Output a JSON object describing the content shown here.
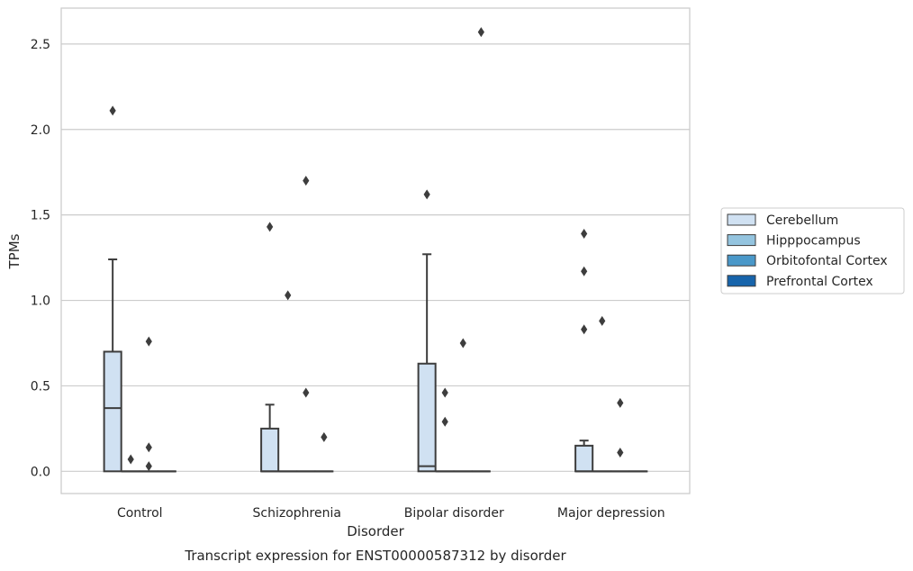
{
  "chart_data": {
    "type": "box",
    "caption": "Transcript expression for ENST00000587312 by disorder",
    "xlabel": "Disorder",
    "ylabel": "TPMs",
    "ylim": [
      -0.13,
      2.71
    ],
    "yticks": [
      "0.0",
      "0.5",
      "1.0",
      "1.5",
      "2.0",
      "2.5"
    ],
    "ytick_values": [
      0.0,
      0.5,
      1.0,
      1.5,
      2.0,
      2.5
    ],
    "grid": true,
    "legend_placement": "right",
    "categories": [
      "Control",
      "Schizophrenia",
      "Bipolar disorder",
      "Major depression"
    ],
    "series": [
      {
        "name": "Cerebellum",
        "color": "#d0e1f2",
        "boxes": [
          {
            "q1": 0.0,
            "median": 0.37,
            "q3": 0.7,
            "whisker_low": 0.0,
            "whisker_high": 1.24,
            "outliers": [
              2.11
            ]
          },
          {
            "q1": 0.0,
            "median": 0.0,
            "q3": 0.25,
            "whisker_low": 0.0,
            "whisker_high": 0.39,
            "outliers": [
              1.43
            ]
          },
          {
            "q1": 0.0,
            "median": 0.03,
            "q3": 0.63,
            "whisker_low": 0.0,
            "whisker_high": 1.27,
            "outliers": [
              1.62
            ]
          },
          {
            "q1": 0.0,
            "median": 0.0,
            "q3": 0.15,
            "whisker_low": 0.0,
            "whisker_high": 0.18,
            "outliers": [
              1.39,
              1.17,
              0.83
            ]
          }
        ]
      },
      {
        "name": "Hipppocampus",
        "color": "#94c4df",
        "boxes": [
          {
            "q1": 0.0,
            "median": 0.0,
            "q3": 0.0,
            "whisker_low": 0.0,
            "whisker_high": 0.0,
            "outliers": [
              0.07
            ]
          },
          {
            "q1": 0.0,
            "median": 0.0,
            "q3": 0.0,
            "whisker_low": 0.0,
            "whisker_high": 0.0,
            "outliers": [
              1.03
            ]
          },
          {
            "q1": 0.0,
            "median": 0.0,
            "q3": 0.0,
            "whisker_low": 0.0,
            "whisker_high": 0.0,
            "outliers": [
              0.46,
              0.29
            ]
          },
          {
            "q1": 0.0,
            "median": 0.0,
            "q3": 0.0,
            "whisker_low": 0.0,
            "whisker_high": 0.0,
            "outliers": [
              0.88
            ]
          }
        ]
      },
      {
        "name": "Orbitofontal Cortex",
        "color": "#4a98c9",
        "boxes": [
          {
            "q1": 0.0,
            "median": 0.0,
            "q3": 0.0,
            "whisker_low": 0.0,
            "whisker_high": 0.0,
            "outliers": [
              0.76,
              0.14,
              0.03
            ]
          },
          {
            "q1": 0.0,
            "median": 0.0,
            "q3": 0.0,
            "whisker_low": 0.0,
            "whisker_high": 0.0,
            "outliers": [
              1.7,
              0.46
            ]
          },
          {
            "q1": 0.0,
            "median": 0.0,
            "q3": 0.0,
            "whisker_low": 0.0,
            "whisker_high": 0.0,
            "outliers": [
              0.75
            ]
          },
          {
            "q1": 0.0,
            "median": 0.0,
            "q3": 0.0,
            "whisker_low": 0.0,
            "whisker_high": 0.0,
            "outliers": [
              0.4,
              0.11
            ]
          }
        ]
      },
      {
        "name": "Prefrontal Cortex",
        "color": "#1764ab",
        "boxes": [
          {
            "q1": 0.0,
            "median": 0.0,
            "q3": 0.0,
            "whisker_low": 0.0,
            "whisker_high": 0.0,
            "outliers": []
          },
          {
            "q1": 0.0,
            "median": 0.0,
            "q3": 0.0,
            "whisker_low": 0.0,
            "whisker_high": 0.0,
            "outliers": [
              0.2
            ]
          },
          {
            "q1": 0.0,
            "median": 0.0,
            "q3": 0.0,
            "whisker_low": 0.0,
            "whisker_high": 0.0,
            "outliers": [
              2.57
            ]
          },
          {
            "q1": 0.0,
            "median": 0.0,
            "q3": 0.0,
            "whisker_low": 0.0,
            "whisker_high": 0.0,
            "outliers": []
          }
        ]
      }
    ]
  }
}
